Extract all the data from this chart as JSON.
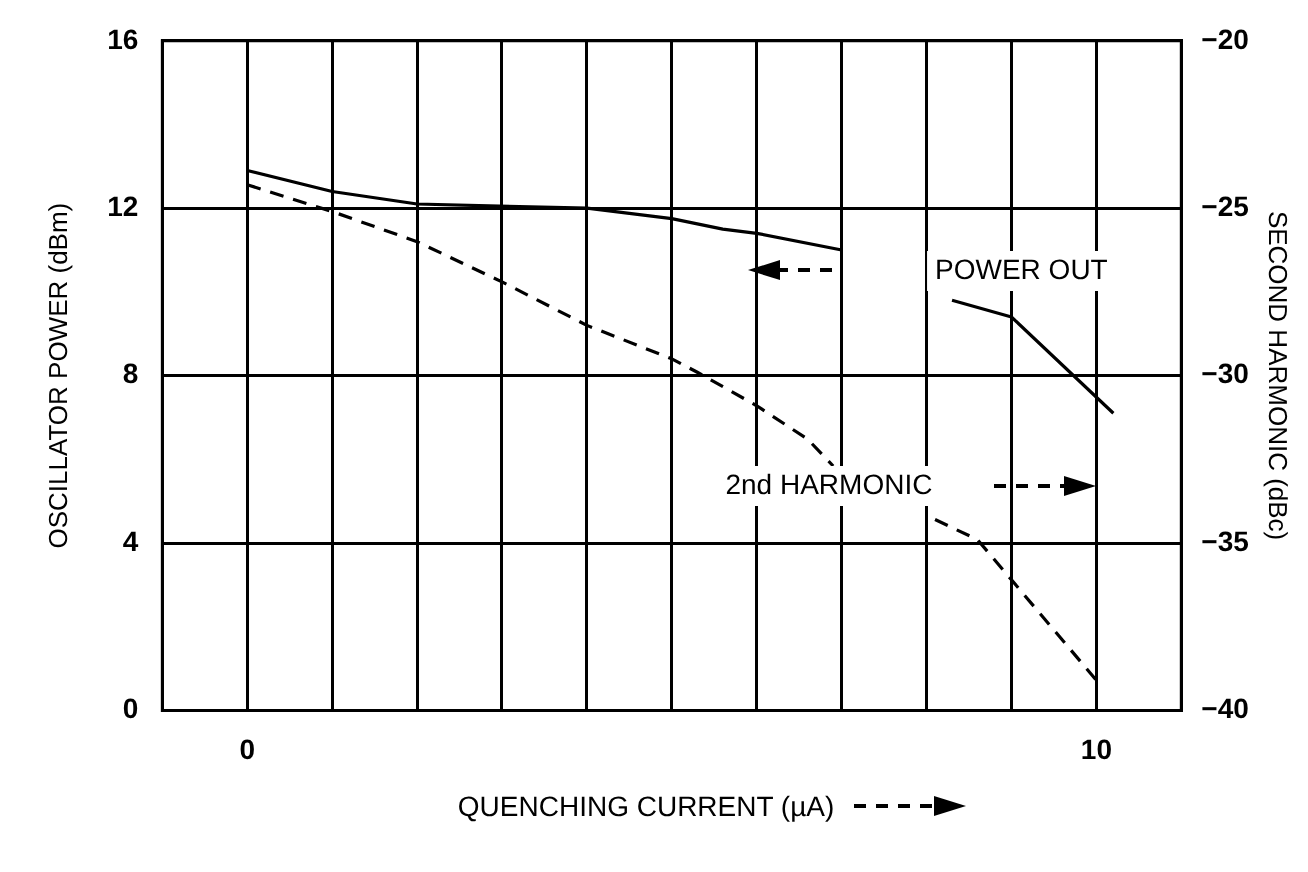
{
  "chart_data": {
    "type": "line",
    "xlabel": "QUENCHING CURRENT (µA)",
    "ylabel": "OSCILLATOR POWER (dBm)",
    "y2label": "SECOND HARMONIC (dBc)",
    "xlim": [
      -1,
      11
    ],
    "xticks": [
      {
        "value": 0,
        "label": "0"
      },
      {
        "value": 1,
        "label": null
      },
      {
        "value": 2,
        "label": null
      },
      {
        "value": 3,
        "label": null
      },
      {
        "value": 4,
        "label": null
      },
      {
        "value": 5,
        "label": null
      },
      {
        "value": 6,
        "label": null
      },
      {
        "value": 7,
        "label": null
      },
      {
        "value": 8,
        "label": null
      },
      {
        "value": 9,
        "label": null
      },
      {
        "value": 10,
        "label": "10"
      }
    ],
    "ylim": [
      0,
      16
    ],
    "yticks": [
      0,
      4,
      8,
      12,
      16
    ],
    "y2lim": [
      -40,
      -20
    ],
    "y2ticks": [
      -40,
      -35,
      -30,
      -25,
      -20
    ],
    "grid": true,
    "legend": "right",
    "marker": "none",
    "series": [
      {
        "name": "POWER OUT",
        "color": "#000000",
        "line_style": "solid",
        "x": [
          0,
          1,
          2,
          4,
          5,
          5.6,
          6,
          7,
          7.6,
          8.3,
          9,
          10.2
        ],
        "values": [
          12.9,
          12.4,
          12.1,
          12.0,
          11.75,
          11.5,
          11.4,
          11.0,
          null,
          9.8,
          9.4,
          7.1
        ]
      },
      {
        "name": "2nd HARMONIC",
        "color": "#000000",
        "line_style": "dashed",
        "axis": "y2",
        "x": [
          0,
          1,
          2,
          3,
          4,
          5,
          5.3,
          6,
          6.6,
          6.9,
          7.5,
          8.1,
          8.6,
          9,
          10
        ],
        "values": [
          -24.3,
          -25.1,
          -26.0,
          -27.2,
          -28.5,
          -29.5,
          -29.9,
          -30.9,
          -31.9,
          -32.7,
          null,
          -34.3,
          -34.9,
          -36.1,
          -39.1
        ]
      }
    ]
  }
}
